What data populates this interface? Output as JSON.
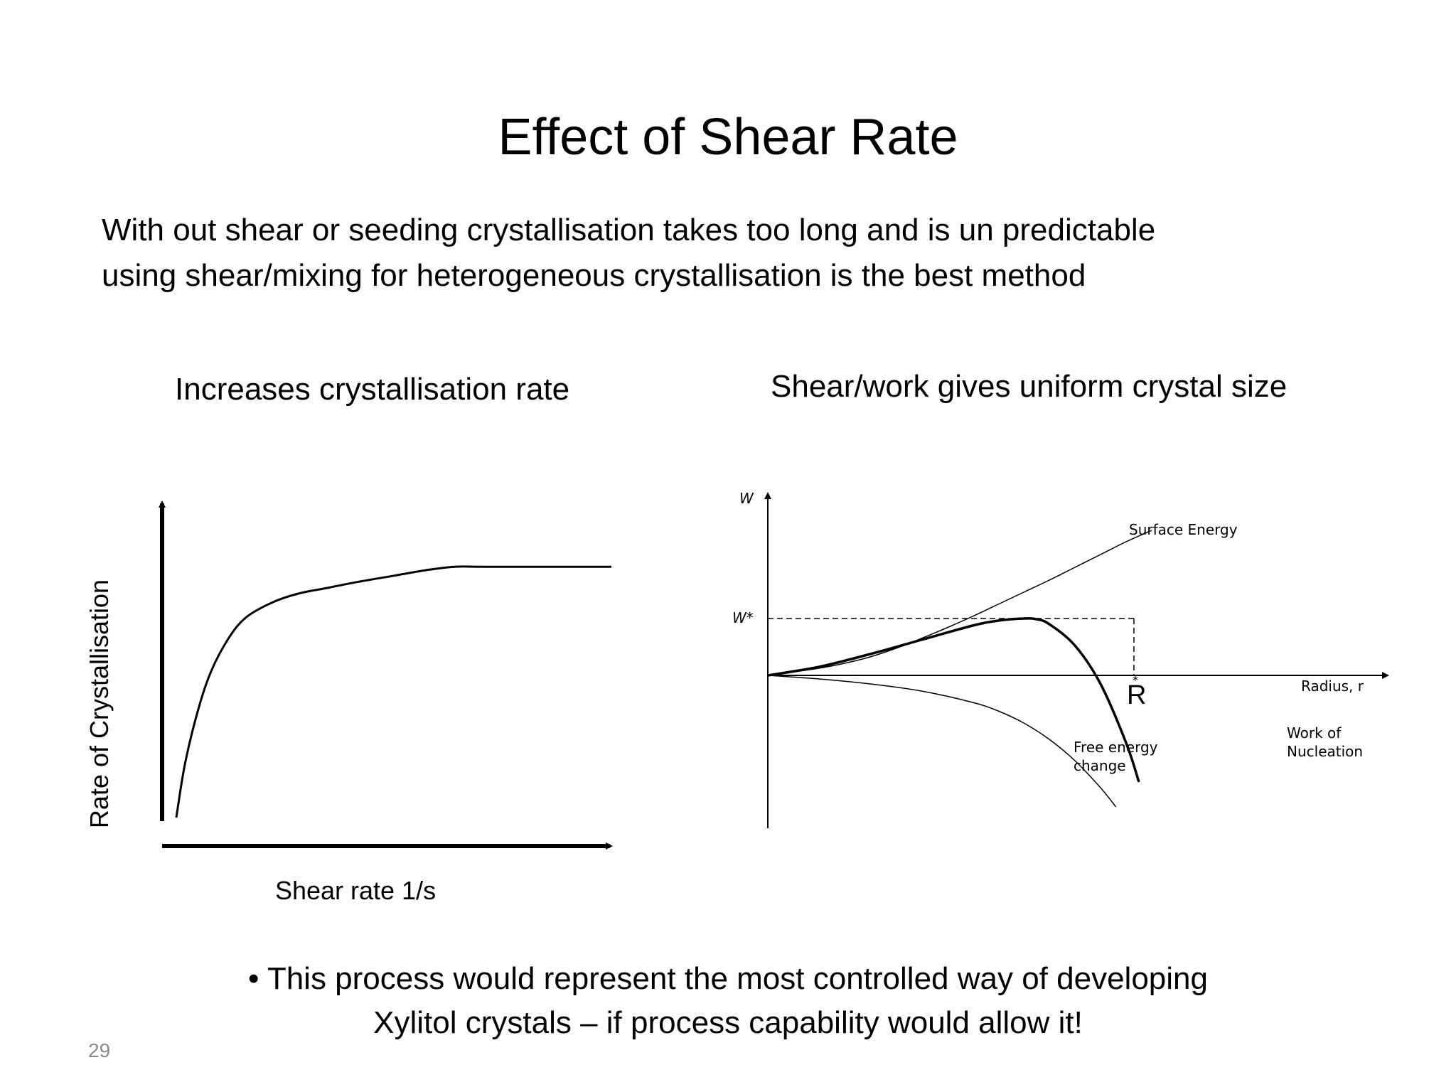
{
  "slide": {
    "title": "Effect of Shear Rate",
    "intro_lines": [
      "With out shear or seeding crystallisation takes too long and is un predictable",
      "using shear/mixing for heterogeneous crystallisation is the best method"
    ],
    "left_heading": "Increases crystallisation rate",
    "right_heading": "Shear/work gives uniform crystal size",
    "bullet_lines": [
      "• This process would represent the most controlled way of developing",
      "Xylitol crystals – if process capability would allow it!"
    ],
    "page_number": "29"
  },
  "chart_data": [
    {
      "type": "line",
      "title": "Increases crystallisation rate",
      "xlabel": "Shear rate 1/s",
      "ylabel": "Rate of Crystallisation",
      "series": [
        {
          "x": [
            0,
            2,
            5,
            8,
            12,
            16,
            22,
            28,
            35,
            42,
            50,
            58,
            64,
            70,
            80,
            90,
            100
          ],
          "y": [
            0,
            18,
            36,
            49,
            60,
            67,
            72,
            75,
            77,
            79,
            81,
            83,
            84,
            84,
            84,
            84,
            84
          ]
        }
      ],
      "grid": false
    },
    {
      "type": "line",
      "title": "Shear/work gives uniform crystal size",
      "xlabel": "Radius, r",
      "ylabel": "W",
      "y_marker_label": "W*",
      "x_marker_label": "R",
      "annotations": [
        "Surface Energy",
        "Free energy change",
        "Work of Nucleation"
      ],
      "series": [
        {
          "name": "Surface Energy",
          "x": [
            0,
            0.1,
            0.2,
            0.3,
            0.4,
            0.5,
            0.6,
            0.7,
            0.8,
            0.9,
            1.0,
            1.1,
            1.2,
            1.3,
            1.4,
            1.5
          ],
          "y": [
            0,
            0.05,
            0.1,
            0.17,
            0.26,
            0.38,
            0.52,
            0.67,
            0.83,
            1.0,
            1.17,
            1.34,
            1.52,
            1.7,
            1.88,
            2.04
          ]
        },
        {
          "name": "Free energy change",
          "x": [
            0,
            0.2,
            0.4,
            0.6,
            0.8,
            0.9,
            1.0,
            1.1,
            1.2,
            1.3,
            1.36
          ],
          "y": [
            0,
            -0.05,
            -0.12,
            -0.22,
            -0.38,
            -0.5,
            -0.67,
            -0.9,
            -1.2,
            -1.58,
            -1.85
          ]
        },
        {
          "name": "Work of Nucleation",
          "x": [
            0,
            0.2,
            0.4,
            0.6,
            0.8,
            0.9,
            1.0,
            1.05,
            1.1,
            1.2,
            1.3,
            1.4,
            1.45
          ],
          "y": [
            0,
            0.12,
            0.3,
            0.5,
            0.7,
            0.77,
            0.8,
            0.79,
            0.72,
            0.42,
            -0.12,
            -0.95,
            -1.5
          ]
        }
      ],
      "grid": false
    }
  ]
}
